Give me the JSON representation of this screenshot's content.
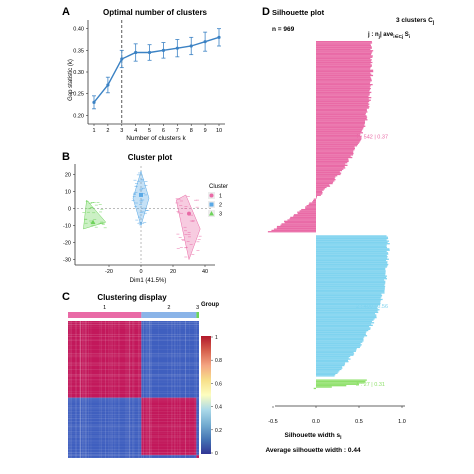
{
  "panels": {
    "A": "A",
    "B": "B",
    "C": "C",
    "D": "D"
  },
  "chart_data": [
    {
      "id": "A",
      "type": "line",
      "title": "Optimal number of clusters",
      "xlabel": "Number of clusters k",
      "ylabel": "Gap statistic (k)",
      "x": [
        1,
        2,
        3,
        4,
        5,
        6,
        7,
        8,
        9,
        10
      ],
      "series": [
        {
          "values": [
            0.23,
            0.27,
            0.33,
            0.345,
            0.345,
            0.35,
            0.355,
            0.36,
            0.37,
            0.38
          ],
          "error": [
            0.015,
            0.018,
            0.02,
            0.02,
            0.018,
            0.018,
            0.02,
            0.02,
            0.022,
            0.02
          ]
        }
      ],
      "xlim": [
        1,
        10
      ],
      "ylim": [
        0.18,
        0.42
      ],
      "yticks": [
        0.2,
        0.25,
        0.3,
        0.35,
        0.4
      ],
      "ytick_labels": [
        "0.20",
        "0.25",
        "0.30",
        "0.35",
        "0.40"
      ],
      "optimal_k": 3,
      "line_color": "#3b82c4"
    },
    {
      "id": "B",
      "type": "scatter",
      "title": "Cluster plot",
      "xlabel": "Dim1 (41.5%)",
      "ylabel": "",
      "xlim": [
        -40,
        45
      ],
      "ylim": [
        -32,
        25
      ],
      "xticks": [
        -20,
        0,
        20,
        40
      ],
      "xtick_labels": [
        "-20",
        "0",
        "20",
        "40"
      ],
      "yticks": [
        -30,
        -20,
        -10,
        0,
        10,
        20
      ],
      "ytick_labels": [
        "-30",
        "-20",
        "-10",
        "0",
        "10",
        "20"
      ],
      "legend": {
        "title": "Cluster",
        "position": "right",
        "items": [
          {
            "label": "1",
            "marker": "circle",
            "color": "#e96aa6"
          },
          {
            "label": "2",
            "marker": "square",
            "color": "#5aa9e6"
          },
          {
            "label": "3",
            "marker": "triangle",
            "color": "#6ed35a"
          }
        ]
      },
      "clusters": [
        {
          "name": "1",
          "color": "#e96aa6",
          "hull": [
            [
              28,
              8
            ],
            [
              37,
              -12
            ],
            [
              30,
              -30
            ],
            [
              22,
              5
            ]
          ],
          "center": [
            30,
            -3
          ],
          "n": 40
        },
        {
          "name": "2",
          "color": "#5aa9e6",
          "hull": [
            [
              0,
              22
            ],
            [
              5,
              6
            ],
            [
              0,
              -10
            ],
            [
              -5,
              6
            ]
          ],
          "center": [
            0,
            8
          ],
          "n": 40
        },
        {
          "name": "3",
          "color": "#6ed35a",
          "hull": [
            [
              -34,
              5
            ],
            [
              -22,
              -8
            ],
            [
              -36,
              -12
            ]
          ],
          "center": [
            -30,
            -8
          ],
          "n": 30
        }
      ]
    },
    {
      "id": "C",
      "type": "heatmap",
      "title": "Clustering display",
      "group_label": "Group",
      "groups": [
        {
          "label": "1",
          "fraction": 0.56,
          "color": "#e96aa6"
        },
        {
          "label": "2",
          "fraction": 0.42,
          "color": "#8ab4e8"
        },
        {
          "label": "3",
          "fraction": 0.02,
          "color": "#6ed35a"
        }
      ],
      "blocks": [
        [
          "high",
          "low",
          "low"
        ],
        [
          "low",
          "high",
          "low"
        ],
        [
          "low",
          "low",
          "high"
        ]
      ],
      "colorbar": {
        "ticks": [
          "1",
          "0.8",
          "0.6",
          "0.4",
          "0.2",
          "0"
        ],
        "colors": [
          "#b2182b",
          "#d6604d",
          "#f4a582",
          "#f7e08a",
          "#fdfdbf",
          "#abd9e9",
          "#74add1",
          "#4575b4",
          "#313695"
        ]
      }
    },
    {
      "id": "D",
      "type": "bar",
      "orientation": "horizontal",
      "title": "Silhouette plot",
      "n_label": "n = 969",
      "header": "3 clusters C",
      "header_sub": "j",
      "legend_header": "j : n",
      "legend_header_mid": "| ave",
      "legend_header_sub": "i∈Cj",
      "legend_header_end": "S",
      "legend_header_end_sub": "i",
      "xlabel": "Silhouette width s",
      "xlabel_sub": "i",
      "xlim": [
        -0.5,
        1.0
      ],
      "xticks": [
        -0.5,
        0.0,
        0.5,
        1.0
      ],
      "xtick_labels": [
        "-0.5",
        "0.0",
        "0.5",
        "1.0"
      ],
      "avg_label": "Average silhouette width : 0.44",
      "clusters": [
        {
          "label": "1 :  542  |  0.37",
          "n": 542,
          "avg": 0.37,
          "color": "#e96aa6"
        },
        {
          "label": "2 :  400  |  0.56",
          "n": 400,
          "avg": 0.56,
          "color": "#7fd3ef"
        },
        {
          "label": "3 :  27  |  0.31",
          "n": 27,
          "avg": 0.31,
          "color": "#8ee06a"
        }
      ]
    }
  ]
}
